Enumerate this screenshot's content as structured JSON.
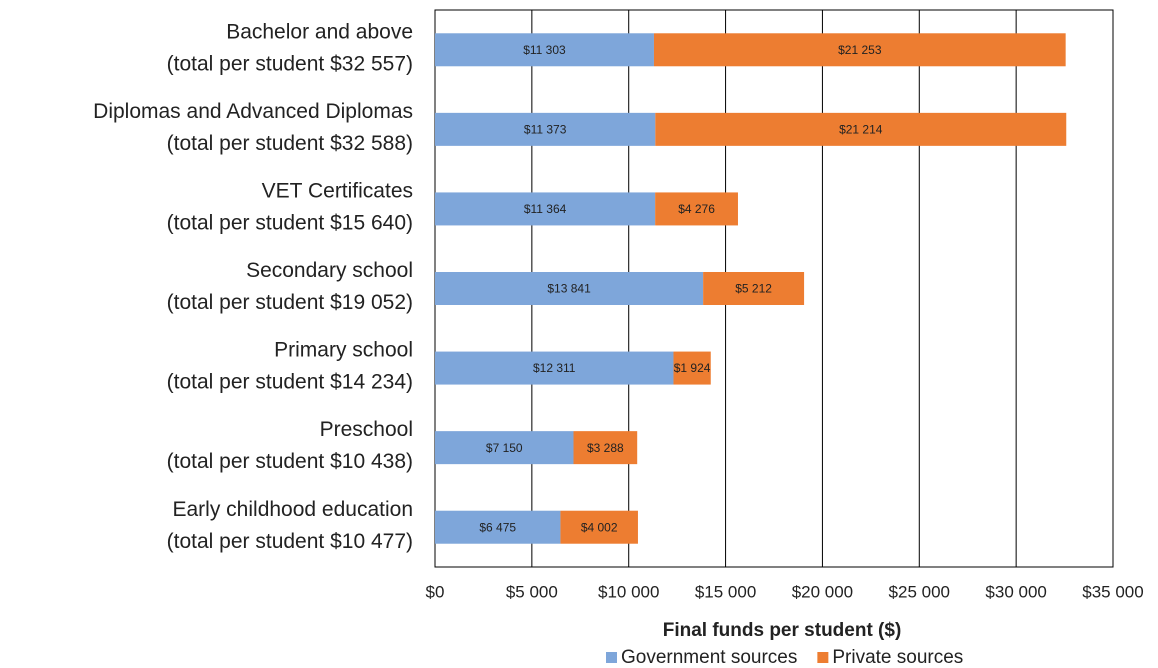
{
  "chart_data": {
    "type": "stacked-barh",
    "categories": [
      "Bachelor and above",
      "Diplomas and Advanced Diplomas",
      "VET Certificates",
      "Secondary school",
      "Primary school",
      "Preschool",
      "Early childhood education"
    ],
    "category_subtitles": [
      "(total per student $32 557)",
      "(total per student $32 588)",
      "(total per student $15 640)",
      "(total per student $19 052)",
      "(total per student $14 234)",
      "(total per student $10 438)",
      "(total per student $10 477)"
    ],
    "series": [
      {
        "name": "Government sources",
        "color": "#7ea6da",
        "values": [
          11303,
          11373,
          11364,
          13841,
          12311,
          7150,
          6475
        ],
        "value_labels": [
          "$11 303",
          "$11 373",
          "$11 364",
          "$13 841",
          "$12 311",
          "$7 150",
          "$6 475"
        ]
      },
      {
        "name": "Private sources",
        "color": "#ed7d31",
        "values": [
          21253,
          21214,
          4276,
          5212,
          1924,
          3288,
          4002
        ],
        "value_labels": [
          "$21 253",
          "$21 214",
          "$4 276",
          "$5 212",
          "$1 924",
          "$3 288",
          "$4 002"
        ]
      }
    ],
    "x_label": "Final funds per student ($)",
    "xlim": [
      0,
      35000
    ],
    "xticks": [
      {
        "value": 0,
        "label": "$0"
      },
      {
        "value": 5000,
        "label": "$5 000"
      },
      {
        "value": 10000,
        "label": "$10 000"
      },
      {
        "value": 15000,
        "label": "$15 000"
      },
      {
        "value": 20000,
        "label": "$20 000"
      },
      {
        "value": 25000,
        "label": "$25 000"
      },
      {
        "value": 30000,
        "label": "$30 000"
      },
      {
        "value": 35000,
        "label": "$35 000"
      }
    ],
    "grid": true,
    "legend": "bottom"
  }
}
